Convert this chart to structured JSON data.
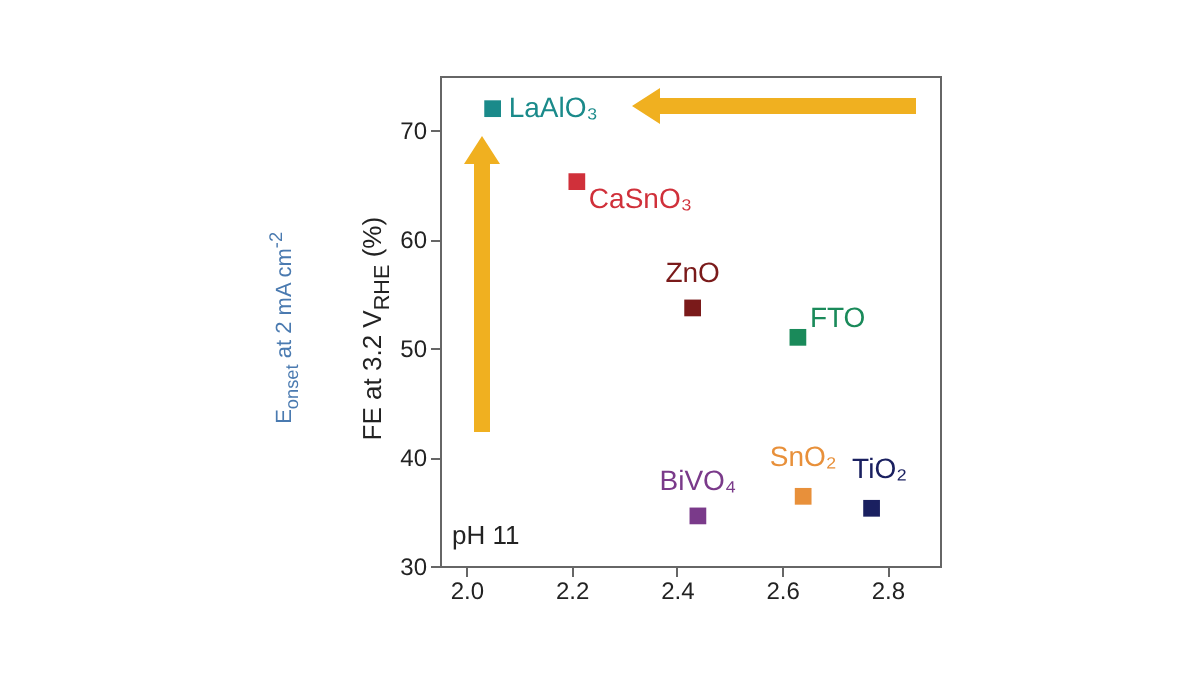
{
  "chart_data": {
    "type": "scatter",
    "ylabel": "FE at 3.2 V$_{RHE}$ (%)",
    "annotations": [
      "pH 11",
      "E$_{onset}$ at 2 mA cm$^{-2}$"
    ],
    "marker": "square",
    "grid": false,
    "legend": false,
    "xlim": [
      1.95,
      2.9
    ],
    "xticks": [
      {
        "value": 2,
        "label": "2.0"
      },
      {
        "value": 2.2,
        "label": "2.2"
      },
      {
        "value": 2.4,
        "label": "2.4"
      },
      {
        "value": 2.6,
        "label": "2.6"
      },
      {
        "value": 2.8,
        "label": "2.8"
      }
    ],
    "ylim": [
      30,
      75
    ],
    "yticks": [
      30,
      40,
      50,
      60,
      70
    ],
    "series": [
      {
        "name": "LaAlO₃",
        "color": "#1a8a8a",
        "x": [
          2.05
        ],
        "values": [
          72
        ]
      },
      {
        "name": "CaSnO₃",
        "color": "#d0303a",
        "x": [
          2.21
        ],
        "values": [
          65.3
        ]
      },
      {
        "name": "ZnO",
        "color": "#7a1a1a",
        "x": [
          2.43
        ],
        "values": [
          53.7
        ]
      },
      {
        "name": "FTO",
        "color": "#1a8a5a",
        "x": [
          2.63
        ],
        "values": [
          51
        ]
      },
      {
        "name": "BiVO₄",
        "color": "#7a3a8a",
        "x": [
          2.44
        ],
        "values": [
          34.6
        ]
      },
      {
        "name": "SnO₂",
        "color": "#e8903a",
        "x": [
          2.64
        ],
        "values": [
          36.4
        ]
      },
      {
        "name": "TiO₂",
        "color": "#1a2060",
        "x": [
          2.77
        ],
        "values": [
          35.3
        ]
      }
    ]
  }
}
